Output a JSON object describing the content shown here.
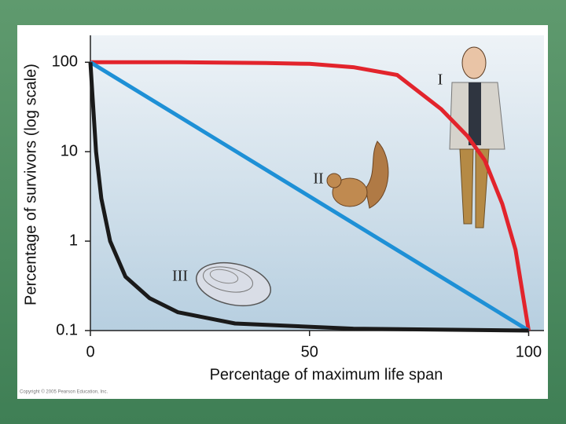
{
  "chart_data": {
    "type": "line",
    "log_y": true,
    "grid": false,
    "xlabel": "Percentage of maximum life span",
    "ylabel": "Percentage of survivors (log scale)",
    "footnote": "Copyright © 2005 Pearson Education, Inc.",
    "xlim": [
      0,
      103.5
    ],
    "ylim": [
      0.1,
      200
    ],
    "xticks": [
      0,
      50,
      100
    ],
    "yticks": [
      0.1,
      1,
      10,
      100
    ],
    "series": [
      {
        "name": "I",
        "color": "#e2242c",
        "x": [
          0,
          20,
          40,
          50,
          60,
          70,
          80,
          86,
          90,
          94,
          97,
          100
        ],
        "y": [
          100,
          100,
          98,
          96,
          88,
          72,
          30,
          15,
          8,
          2.6,
          0.8,
          0.1
        ]
      },
      {
        "name": "II",
        "color": "#1e90d6",
        "x": [
          0,
          100
        ],
        "y": [
          100,
          0.1
        ]
      },
      {
        "name": "III",
        "color": "#1a1a1a",
        "x": [
          0,
          0.5,
          1.3,
          2.5,
          4.5,
          8,
          13.5,
          20,
          33,
          60,
          100
        ],
        "y": [
          100,
          40,
          10,
          3,
          1,
          0.4,
          0.23,
          0.16,
          0.12,
          0.105,
          0.1
        ]
      }
    ]
  }
}
